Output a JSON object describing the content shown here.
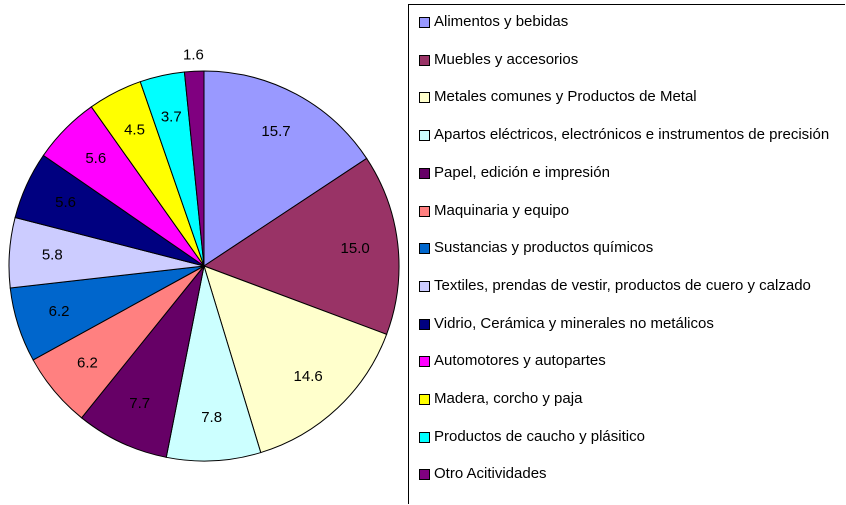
{
  "chart_data": {
    "type": "pie",
    "categories": [
      "Alimentos y bebidas",
      "Muebles y accesorios",
      "Metales comunes y Productos de Metal",
      "Apartos eléctricos, electrónicos e instrumentos de precisión",
      "Papel, edición e impresión",
      "Maquinaria y equipo",
      "Sustancias y productos químicos",
      "Textiles, prendas de vestir, productos de cuero y calzado",
      "Vidrio, Cerámica y minerales no metálicos",
      "Automotores y autopartes",
      "Madera, corcho y paja",
      "Productos de caucho y plásitico",
      "Otro Acitividades"
    ],
    "values": [
      15.7,
      15.0,
      14.6,
      7.8,
      7.7,
      6.2,
      6.2,
      5.8,
      5.6,
      5.6,
      4.5,
      3.7,
      1.6
    ],
    "value_labels": [
      "15.7",
      "15.0",
      "14.6",
      "7.8",
      "7.7",
      "6.2",
      "6.2",
      "5.8",
      "5.6",
      "5.6",
      "4.5",
      "3.7",
      "1.6"
    ],
    "colors": [
      "#9999ff",
      "#993366",
      "#ffffcc",
      "#ccffff",
      "#660066",
      "#ff8080",
      "#0066cc",
      "#ccccff",
      "#000080",
      "#ff00ff",
      "#ffff00",
      "#00ffff",
      "#800080"
    ],
    "legend": "right"
  }
}
